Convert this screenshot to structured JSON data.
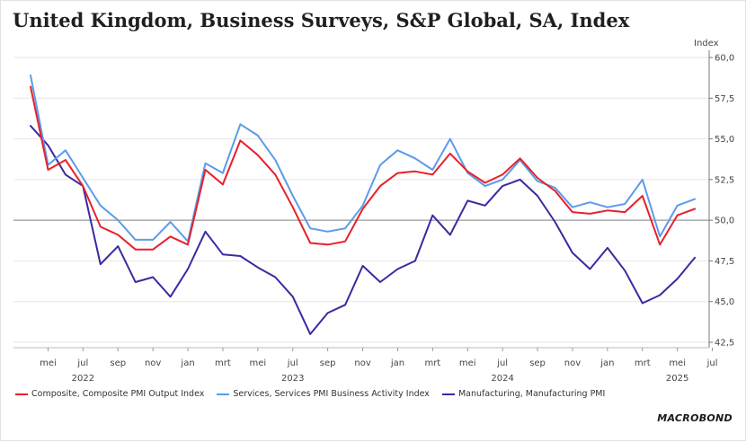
{
  "title": "United Kingdom, Business Surveys, S&P Global, SA, Index",
  "brand": "MACROBOND",
  "colors": {
    "composite": "#e8202a",
    "services": "#5c9bea",
    "manufacturing": "#3a2aa0",
    "reference_line": "#9a9a9a",
    "grid": "#e6e6e6"
  },
  "chart_data": {
    "type": "line",
    "ylabel": "Index",
    "ylim": [
      42.5,
      60.0
    ],
    "yticks": [
      "60,0",
      "57,5",
      "55,0",
      "52,5",
      "50,0",
      "47,5",
      "45,0",
      "42,5"
    ],
    "reference_line": 50.0,
    "grid": "horizontal",
    "x": [
      "2022-04",
      "2022-05",
      "2022-06",
      "2022-07",
      "2022-08",
      "2022-09",
      "2022-10",
      "2022-11",
      "2022-12",
      "2023-01",
      "2023-02",
      "2023-03",
      "2023-04",
      "2023-05",
      "2023-06",
      "2023-07",
      "2023-08",
      "2023-09",
      "2023-10",
      "2023-11",
      "2023-12",
      "2024-01",
      "2024-02",
      "2024-03",
      "2024-04",
      "2024-05",
      "2024-06",
      "2024-07",
      "2024-08",
      "2024-09",
      "2024-10",
      "2024-11",
      "2024-12",
      "2025-01",
      "2025-02",
      "2025-03",
      "2025-04",
      "2025-05",
      "2025-06"
    ],
    "x_tick_labels": [
      "mei",
      "jul",
      "sep",
      "nov",
      "jan",
      "mrt",
      "mei",
      "jul",
      "sep",
      "nov",
      "jan",
      "mrt",
      "mei",
      "jul",
      "sep",
      "nov",
      "jan",
      "mrt",
      "mei",
      "jul"
    ],
    "x_tick_months": [
      "2022-05",
      "2022-07",
      "2022-09",
      "2022-11",
      "2023-01",
      "2023-03",
      "2023-05",
      "2023-07",
      "2023-09",
      "2023-11",
      "2024-01",
      "2024-03",
      "2024-05",
      "2024-07",
      "2024-09",
      "2024-11",
      "2025-01",
      "2025-03",
      "2025-05",
      "2025-07"
    ],
    "year_labels": [
      "2022",
      "2023",
      "2024",
      "2025"
    ],
    "year_label_months": [
      "2022-07",
      "2023-07",
      "2024-07",
      "2025-05"
    ],
    "legend_position": "bottom",
    "series": [
      {
        "name": "Composite, Composite PMI Output Index",
        "key": "composite",
        "values": [
          58.2,
          53.1,
          53.7,
          52.1,
          49.6,
          49.1,
          48.2,
          48.2,
          49.0,
          48.5,
          53.1,
          52.2,
          54.9,
          54.0,
          52.8,
          50.8,
          48.6,
          48.5,
          48.7,
          50.7,
          52.1,
          52.9,
          53.0,
          52.8,
          54.1,
          53.0,
          52.3,
          52.8,
          53.8,
          52.6,
          51.8,
          50.5,
          50.4,
          50.6,
          50.5,
          51.5,
          48.5,
          50.3,
          50.7
        ]
      },
      {
        "name": "Services, Services PMI Business Activity Index",
        "key": "services",
        "values": [
          58.9,
          53.4,
          54.3,
          52.6,
          50.9,
          50.0,
          48.8,
          48.8,
          49.9,
          48.7,
          53.5,
          52.9,
          55.9,
          55.2,
          53.7,
          51.5,
          49.5,
          49.3,
          49.5,
          50.9,
          53.4,
          54.3,
          53.8,
          53.1,
          55.0,
          52.9,
          52.1,
          52.5,
          53.7,
          52.4,
          52.0,
          50.8,
          51.1,
          50.8,
          51.0,
          52.5,
          49.0,
          50.9,
          51.3
        ]
      },
      {
        "name": "Manufacturing, Manufacturing PMI",
        "key": "manufacturing",
        "values": [
          55.8,
          54.6,
          52.8,
          52.1,
          47.3,
          48.4,
          46.2,
          46.5,
          45.3,
          47.0,
          49.3,
          47.9,
          47.8,
          47.1,
          46.5,
          45.3,
          43.0,
          44.3,
          44.8,
          47.2,
          46.2,
          47.0,
          47.5,
          50.3,
          49.1,
          51.2,
          50.9,
          52.1,
          52.5,
          51.5,
          49.9,
          48.0,
          47.0,
          48.3,
          46.9,
          44.9,
          45.4,
          46.4,
          47.7
        ]
      }
    ]
  }
}
